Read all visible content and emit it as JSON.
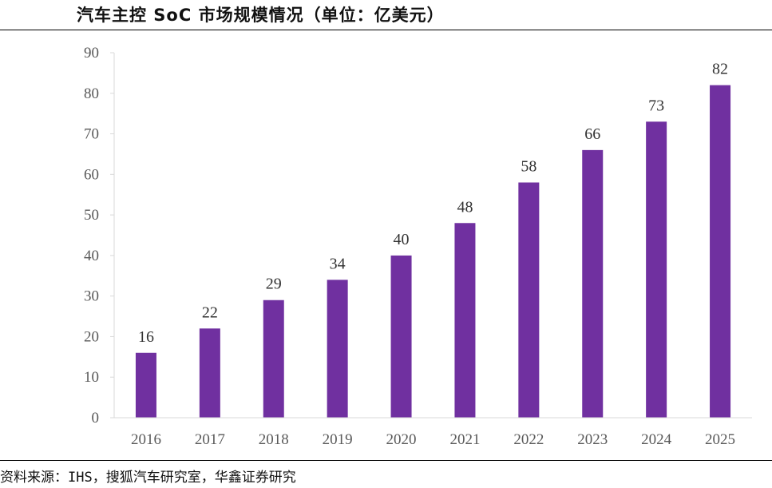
{
  "header": {
    "title": "汽车主控 SoC 市场规模情况（单位：亿美元）"
  },
  "footer": {
    "source": "资料来源：IHS，搜狐汽车研究室，华鑫证券研究"
  },
  "chart_data": {
    "type": "bar",
    "title": "汽车主控 SoC 市场规模情况（单位：亿美元）",
    "xlabel": "",
    "ylabel": "",
    "categories": [
      "2016",
      "2017",
      "2018",
      "2019",
      "2020",
      "2021",
      "2022",
      "2023",
      "2024",
      "2025"
    ],
    "values": [
      16,
      22,
      29,
      34,
      40,
      48,
      58,
      66,
      73,
      82
    ],
    "ylim": [
      0,
      90
    ],
    "yticks": [
      0,
      10,
      20,
      30,
      40,
      50,
      60,
      70,
      80,
      90
    ],
    "bar_color": "#7030A0",
    "grid": false,
    "legend": "none",
    "data_labels": true
  }
}
